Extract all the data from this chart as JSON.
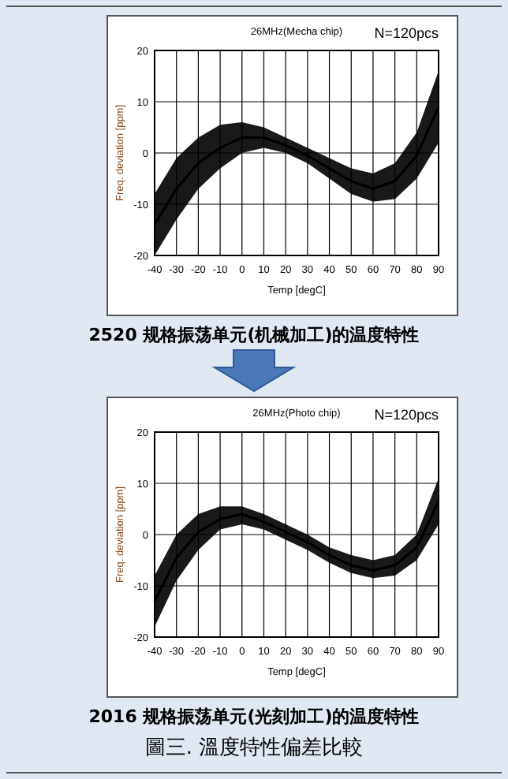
{
  "chart_data": [
    {
      "type": "line",
      "title": "26MHz(Mecha chip)",
      "xlabel": "Temp [degC]",
      "ylabel": "Freq. deviation [ppm]",
      "annotations": [
        "N=120pcs",
        "2520 规格振荡单元(机械加工)的温度特性"
      ],
      "x": [
        -40,
        -30,
        -20,
        -10,
        0,
        10,
        20,
        30,
        40,
        50,
        60,
        70,
        80,
        90
      ],
      "xlim": [
        -40,
        90
      ],
      "xticks": [
        -40,
        -30,
        -20,
        -10,
        0,
        10,
        20,
        30,
        40,
        50,
        60,
        70,
        80,
        90
      ],
      "ylim": [
        -20,
        20
      ],
      "yticks": [
        -20,
        -10,
        0,
        10,
        20
      ],
      "grid": true,
      "marker": "none",
      "series": [
        {
          "color": "#000000",
          "values": [
            -14,
            -7,
            -2,
            1,
            3,
            3,
            1.5,
            -0.5,
            -3,
            -5.5,
            -7,
            -5.5,
            -0.5,
            9
          ],
          "lower": [
            -20,
            -13,
            -7,
            -3,
            0,
            1,
            0,
            -2,
            -5,
            -8,
            -9.5,
            -9,
            -5,
            2
          ],
          "upper": [
            -8,
            -1,
            3,
            5.5,
            6,
            5,
            3,
            1,
            -1,
            -3,
            -4,
            -2,
            4,
            16
          ]
        }
      ]
    },
    {
      "type": "line",
      "title": "26MHz(Photo chip)",
      "xlabel": "Temp [degC]",
      "ylabel": "Freq. deviation [ppm]",
      "annotations": [
        "N=120pcs",
        "2016 规格振荡单元(光刻加工)的温度特性",
        "圖三. 溫度特性偏差比較"
      ],
      "x": [
        -40,
        -30,
        -20,
        -10,
        0,
        10,
        20,
        30,
        40,
        50,
        60,
        70,
        80,
        90
      ],
      "xlim": [
        -40,
        90
      ],
      "xticks": [
        -40,
        -30,
        -20,
        -10,
        0,
        10,
        20,
        30,
        40,
        50,
        60,
        70,
        80,
        90
      ],
      "ylim": [
        -20,
        20
      ],
      "yticks": [
        -20,
        -10,
        0,
        10,
        20
      ],
      "grid": true,
      "marker": "none",
      "series": [
        {
          "color": "#000000",
          "values": [
            -13,
            -4.5,
            0.5,
            3,
            4,
            2.5,
            0.5,
            -1.5,
            -4,
            -6,
            -7,
            -6,
            -2.5,
            6.5
          ],
          "lower": [
            -18,
            -9,
            -3,
            1,
            2,
            1,
            -1,
            -3,
            -5.5,
            -7.5,
            -8.5,
            -8,
            -5,
            2
          ],
          "upper": [
            -8,
            0,
            4,
            5.5,
            5.5,
            4,
            2,
            0,
            -2.5,
            -4,
            -5,
            -4,
            0,
            11
          ]
        }
      ]
    }
  ]
}
